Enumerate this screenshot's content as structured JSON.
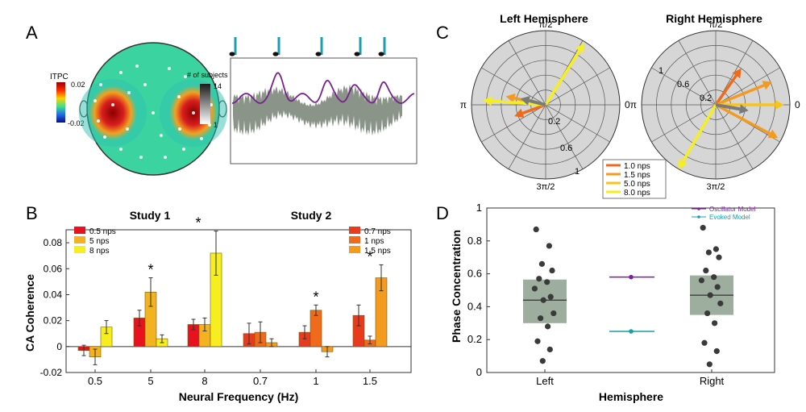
{
  "panel_letters": {
    "a": "A",
    "b": "B",
    "c": "C",
    "d": "D"
  },
  "panel_a": {
    "colorbar_title": "ITPC",
    "colorbar_max": "0.02",
    "colorbar_min": "-0.02",
    "gray_bar_title": "# of subjects",
    "gray_bar_max": "14",
    "gray_bar_min": "1",
    "note_count": 5,
    "colors": {
      "trace": "#7b2090",
      "envelope": "#8a9488",
      "note": "#1a9fb0"
    }
  },
  "chart_data": [
    {
      "id": "B",
      "type": "bar",
      "ylabel": "CA Coherence",
      "xlabel": "Neural Frequency (Hz)",
      "ylim": [
        -0.02,
        0.09
      ],
      "yticks": [
        "-0.02",
        "0",
        "0.02",
        "0.04",
        "0.06",
        "0.08"
      ],
      "studies": [
        {
          "title": "Study 1",
          "groups": [
            "0.5",
            "5",
            "8"
          ],
          "series": [
            {
              "name": "0.5 nps",
              "color": "#e8121e",
              "values": [
                -0.003,
                0.022,
                0.017
              ],
              "errors": [
                0.004,
                0.006,
                0.004
              ]
            },
            {
              "name": "5 nps",
              "color": "#f3b320",
              "values": [
                -0.008,
                0.042,
                0.017
              ],
              "errors": [
                0.006,
                0.011,
                0.005
              ]
            },
            {
              "name": "8 nps",
              "color": "#f6ee1e",
              "values": [
                0.015,
                0.006,
                0.072
              ],
              "errors": [
                0.005,
                0.003,
                0.017
              ]
            }
          ],
          "significance": [
            {
              "group": 1,
              "bar": 1,
              "label": "*"
            },
            {
              "group": 2,
              "bar": 1,
              "label": "*"
            }
          ]
        },
        {
          "title": "Study 2",
          "groups": [
            "0.7",
            "1",
            "1.5"
          ],
          "series": [
            {
              "name": "0.7 nps",
              "color": "#e83a1c",
              "values": [
                0.01,
                0.011,
                0.024
              ],
              "errors": [
                0.008,
                0.005,
                0.008
              ]
            },
            {
              "name": "1 nps",
              "color": "#ef6a1a",
              "values": [
                0.011,
                0.028,
                0.005
              ],
              "errors": [
                0.008,
                0.004,
                0.003
              ]
            },
            {
              "name": "1.5 nps",
              "color": "#f39a1f",
              "values": [
                0.003,
                -0.004,
                0.053
              ],
              "errors": [
                0.003,
                0.004,
                0.01
              ]
            }
          ],
          "significance": [
            {
              "group": 1,
              "bar": 1,
              "label": "*"
            },
            {
              "group": 2,
              "bar": 1,
              "label": "*"
            }
          ]
        }
      ]
    },
    {
      "id": "C",
      "type": "polar",
      "angle_labels": {
        "top": "π/2",
        "left": "π",
        "right": "0",
        "bottom": "3π/2"
      },
      "legend": [
        {
          "name": "1.0 nps",
          "color": "#ef6a1a"
        },
        {
          "name": "1.5 nps",
          "color": "#f39a1f"
        },
        {
          "name": "5.0 nps",
          "color": "#f8c41c"
        },
        {
          "name": "8.0 nps",
          "color": "#f6ee1e"
        }
      ],
      "mean_color": "#7a7a7a",
      "plots": [
        {
          "title": "Left Hemisphere",
          "radial_labels": [
            "0.2",
            "0.6",
            "1"
          ],
          "vectors": [
            {
              "angle_deg": 200,
              "length": 0.45,
              "series": 0
            },
            {
              "angle_deg": 168,
              "length": 0.55,
              "series": 1
            },
            {
              "angle_deg": 176,
              "length": 0.85,
              "series": 3
            },
            {
              "angle_deg": 58,
              "length": 0.98,
              "series": 3
            },
            {
              "angle_deg": 166,
              "length": 0.35,
              "series": "mean"
            }
          ]
        },
        {
          "title": "Right Hemisphere",
          "radial_labels": [
            "0.2",
            "0.6",
            "1"
          ],
          "vectors": [
            {
              "angle_deg": 55,
              "length": 0.6,
              "series": 0
            },
            {
              "angle_deg": 22,
              "length": 0.82,
              "series": 1
            },
            {
              "angle_deg": -28,
              "length": 0.95,
              "series": 1
            },
            {
              "angle_deg": 0,
              "length": 0.92,
              "series": 2
            },
            {
              "angle_deg": 240,
              "length": 1.0,
              "series": 3
            },
            {
              "angle_deg": -10,
              "length": 0.45,
              "series": "mean"
            }
          ]
        }
      ]
    },
    {
      "id": "D",
      "type": "scatter",
      "ylabel": "Phase Concentration",
      "xlabel": "Hemisphere",
      "ylim": [
        0,
        1
      ],
      "yticks": [
        "0",
        "0.2",
        "0.4",
        "0.6",
        "0.8",
        "1"
      ],
      "categories": [
        "Left",
        "Right"
      ],
      "box_color": "#9eae9e",
      "point_color": "#3a3a3a",
      "boxes": [
        {
          "category": "Left",
          "q1": 0.3,
          "q3": 0.565,
          "median": 0.44
        },
        {
          "category": "Right",
          "q1": 0.35,
          "q3": 0.59,
          "median": 0.47
        }
      ],
      "points": [
        {
          "category": "Left",
          "values": [
            0.87,
            0.77,
            0.66,
            0.62,
            0.57,
            0.55,
            0.51,
            0.46,
            0.44,
            0.36,
            0.33,
            0.28,
            0.19,
            0.14,
            0.07
          ]
        },
        {
          "category": "Right",
          "values": [
            0.88,
            0.75,
            0.73,
            0.7,
            0.62,
            0.58,
            0.56,
            0.52,
            0.47,
            0.42,
            0.36,
            0.3,
            0.18,
            0.13,
            0.05
          ]
        }
      ],
      "models": [
        {
          "name": "Oscillator Model",
          "value": 0.58,
          "color": "#7c1fa2"
        },
        {
          "name": "Evoked Model",
          "value": 0.25,
          "color": "#15a0a8"
        }
      ]
    }
  ]
}
